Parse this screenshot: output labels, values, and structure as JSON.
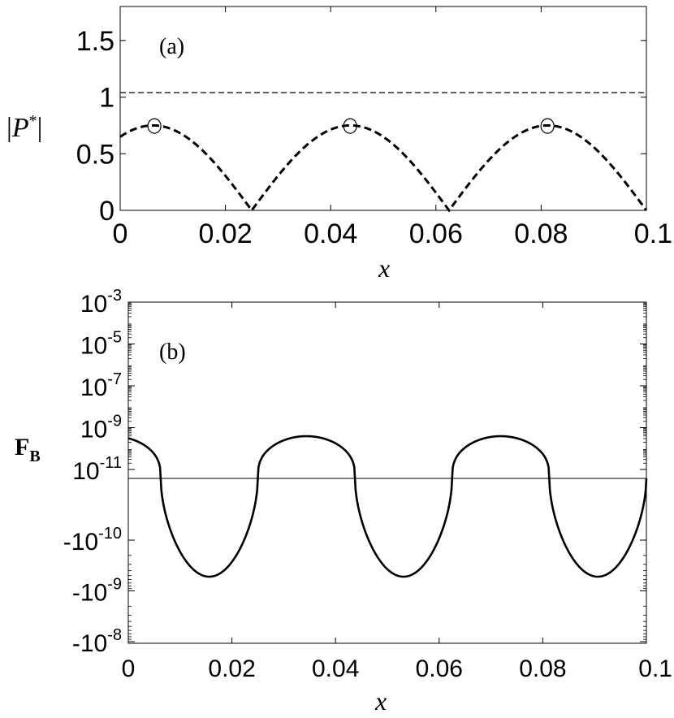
{
  "chart_data": [
    {
      "type": "line",
      "panel_label": "(a)",
      "xlabel": "x",
      "ylabel": "|P*|",
      "xlim": [
        0,
        0.1
      ],
      "ylim": [
        0,
        1.8
      ],
      "x_ticks": [
        "0",
        "0.02",
        "0.04",
        "0.06",
        "0.08",
        "0.1"
      ],
      "y_ticks": [
        "0",
        "0.5",
        "1",
        "1.5"
      ],
      "reference_line": {
        "y": 1.04,
        "style": "dashed"
      },
      "series": [
        {
          "style": "dashed",
          "x": [
            0,
            0.00625,
            0.0125,
            0.01875,
            0.025,
            0.03125,
            0.04375,
            0.05625,
            0.0625,
            0.06875,
            0.08125,
            0.09375,
            0.1
          ],
          "y": [
            0.64,
            0.75,
            0.62,
            0.33,
            0.0,
            0.41,
            0.75,
            0.41,
            0.0,
            0.41,
            0.75,
            0.41,
            0.0
          ]
        }
      ],
      "markers": {
        "shape": "open-circle",
        "points": [
          [
            0.0065,
            0.745
          ],
          [
            0.0437,
            0.745
          ],
          [
            0.0812,
            0.745
          ]
        ]
      },
      "grid": false
    },
    {
      "type": "line",
      "panel_label": "(b)",
      "xlabel": "x",
      "ylabel": "F_B",
      "xlim": [
        0,
        0.1
      ],
      "y_scale": "symlog",
      "x_ticks": [
        "0",
        "0.02",
        "0.04",
        "0.06",
        "0.08",
        "0.1"
      ],
      "y_ticks": [
        {
          "base": "10",
          "exp": "-3",
          "value": 0.001
        },
        {
          "base": "10",
          "exp": "-5",
          "value": 1e-05
        },
        {
          "base": "10",
          "exp": "-7",
          "value": 1e-07
        },
        {
          "base": "10",
          "exp": "-9",
          "value": 1e-09
        },
        {
          "base": "10",
          "exp": "-11",
          "value": 1e-11
        },
        {
          "base": "-10",
          "exp": "-10",
          "value": -1e-10
        },
        {
          "base": "-10",
          "exp": "-9",
          "value": -1e-09
        },
        {
          "base": "-10",
          "exp": "-8",
          "value": -1e-08
        }
      ],
      "zero_line": true,
      "series": [
        {
          "style": "solid",
          "x": [
            0,
            0.004,
            0.006,
            0.008,
            0.016,
            0.024,
            0.025,
            0.027,
            0.035,
            0.043,
            0.044,
            0.046,
            0.053,
            0.061,
            0.062,
            0.064,
            0.072,
            0.08,
            0.081,
            0.083,
            0.091,
            0.099,
            0.1
          ],
          "y": [
            4e-10,
            2e-10,
            -1e-10,
            -5e-10,
            -1.5e-09,
            -5e-10,
            1e-10,
            3e-10,
            4.5e-10,
            3e-10,
            -1e-10,
            -5e-10,
            -1.5e-09,
            -5e-10,
            1e-10,
            3e-10,
            4.5e-10,
            3e-10,
            -1e-10,
            -5e-10,
            -1.5e-09,
            -4e-10,
            0
          ]
        }
      ],
      "grid": false
    }
  ]
}
